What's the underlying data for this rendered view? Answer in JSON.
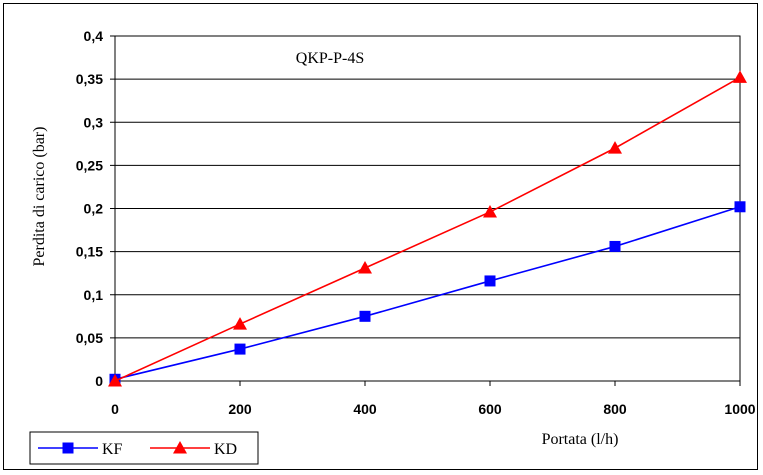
{
  "chart_data": {
    "type": "line",
    "title": "QKP-P-4S",
    "xlabel": "Portata (l/h)",
    "ylabel": "Perdita di carico (bar)",
    "x": [
      0,
      200,
      400,
      600,
      800,
      1000
    ],
    "xlim": [
      0,
      1000
    ],
    "ylim": [
      0,
      0.4
    ],
    "x_ticks": [
      "0",
      "200",
      "400",
      "600",
      "800",
      "1000"
    ],
    "y_ticks": [
      "0",
      "0,05",
      "0,1",
      "0,15",
      "0,2",
      "0,25",
      "0,3",
      "0,35",
      "0,4"
    ],
    "grid": "horizontal",
    "legend_position": "bottom-left",
    "series": [
      {
        "name": "KF",
        "color": "#0000ff",
        "marker": "square",
        "values": [
          0.002,
          0.037,
          0.075,
          0.116,
          0.156,
          0.202
        ]
      },
      {
        "name": "KD",
        "color": "#ff0000",
        "marker": "triangle",
        "values": [
          0.0,
          0.066,
          0.131,
          0.196,
          0.27,
          0.352
        ]
      }
    ]
  }
}
